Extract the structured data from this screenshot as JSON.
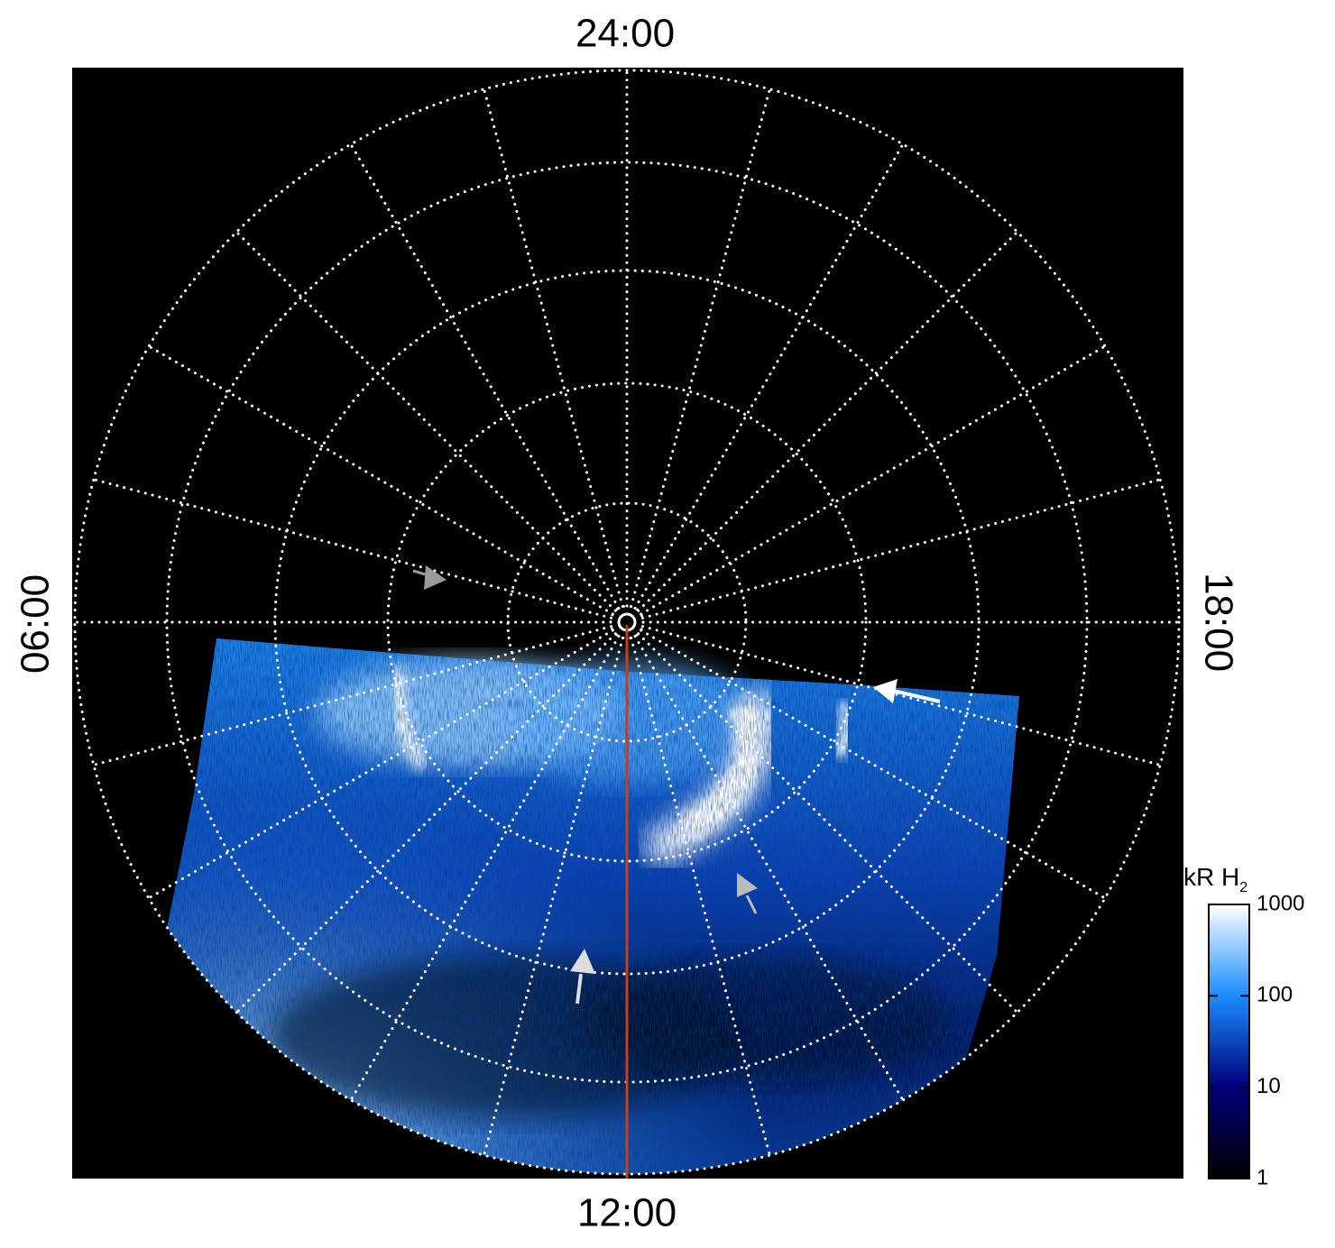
{
  "chart_data": {
    "type": "polar-image",
    "angle_labels": [
      "24:00",
      "06:00",
      "12:00",
      "18:00"
    ],
    "colorbar": {
      "label": "kR H",
      "label_sub": "2",
      "lim": [
        1,
        1000
      ],
      "ticks": [
        1,
        10,
        100,
        1000
      ],
      "log": true,
      "colors": [
        "#000000",
        "#00007a",
        "#1a8cff",
        "#ffffff"
      ]
    }
  }
}
